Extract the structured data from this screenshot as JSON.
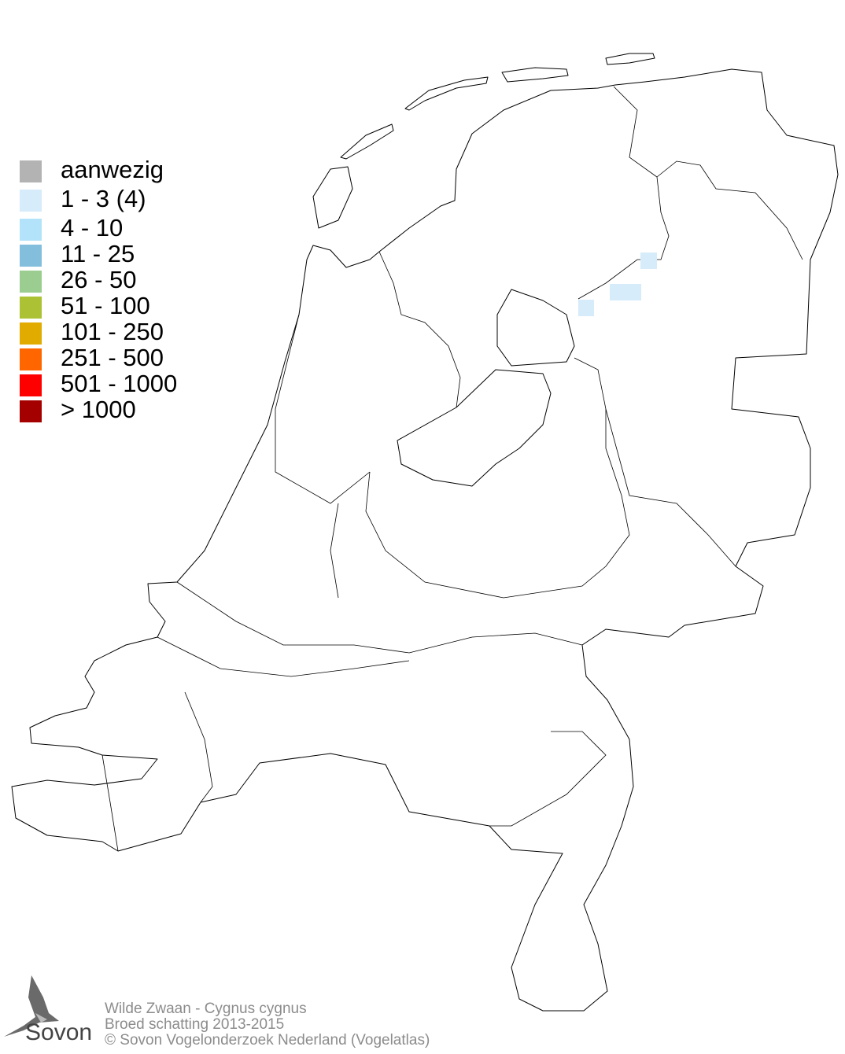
{
  "legend": {
    "items": [
      {
        "label": "aanwezig",
        "color": "#b3b3b3"
      },
      {
        "label": "1 - 3 (4)",
        "color": "#d6ecfa"
      },
      {
        "label": "4 - 10",
        "color": "#b3e3fa"
      },
      {
        "label": "11 - 25",
        "color": "#83bfdd"
      },
      {
        "label": "26 - 50",
        "color": "#9bcd90"
      },
      {
        "label": "51 - 100",
        "color": "#acc234"
      },
      {
        "label": "101 - 250",
        "color": "#e1ab00"
      },
      {
        "label": "251 - 500",
        "color": "#ff6600"
      },
      {
        "label": "501 - 1000",
        "color": "#ff0000"
      },
      {
        "label": "> 1000",
        "color": "#a50000"
      }
    ]
  },
  "map": {
    "occupied_cells_class": "1 - 3 (4)",
    "occupied_cell_color": "#d6ecfa"
  },
  "footer": {
    "species": "Wilde Zwaan - Cygnus cygnus",
    "subtitle": "Broed schatting 2013-2015",
    "copyright": "© Sovon Vogelonderzoek Nederland (Vogelatlas)"
  },
  "logo": {
    "text": "Sovon"
  }
}
